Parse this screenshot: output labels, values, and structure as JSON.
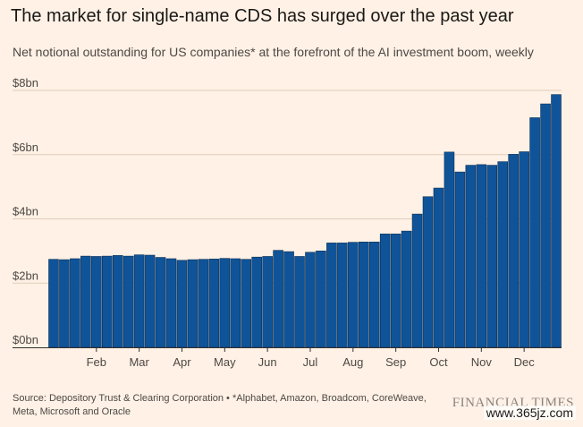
{
  "header": {
    "title": "The market for single-name CDS has surged over the past year",
    "subtitle": "Net notional outstanding for US companies* at the forefront of the AI investment boom, weekly"
  },
  "footer": {
    "source": "Source: Depository Trust & Clearing Corporation • *Alphabet, Amazon, Broadcom, CoreWeave, Meta, Microsoft and Oracle",
    "brand": "FINANCIAL TIMES",
    "watermark": "www.365jz.com"
  },
  "colors": {
    "background": "#fff1e5",
    "bar_fill": "#0f5499",
    "bar_stroke": "#0a2d52",
    "gridline": "#e0ccbc",
    "axis_text": "#4d4845"
  },
  "chart_data": {
    "type": "bar",
    "title": "The market for single-name CDS has surged over the past year",
    "subtitle": "Net notional outstanding for US companies* at the forefront of the AI investment boom, weekly",
    "xlabel": "",
    "ylabel": "",
    "unit": "$bn",
    "ylim": [
      0,
      8
    ],
    "yticks": [
      0,
      2,
      4,
      6,
      8
    ],
    "ytick_labels": [
      "$0bn",
      "$2bn",
      "$4bn",
      "$6bn",
      "$8bn"
    ],
    "grid": true,
    "series": [
      {
        "name": "Net notional outstanding",
        "values": [
          2.74,
          2.73,
          2.76,
          2.84,
          2.83,
          2.84,
          2.86,
          2.84,
          2.88,
          2.87,
          2.8,
          2.76,
          2.71,
          2.73,
          2.74,
          2.75,
          2.77,
          2.76,
          2.74,
          2.81,
          2.83,
          3.02,
          2.98,
          2.83,
          2.96,
          3.0,
          3.25,
          3.25,
          3.27,
          3.28,
          3.28,
          3.53,
          3.53,
          3.62,
          4.15,
          4.69,
          4.96,
          6.08,
          5.46,
          5.67,
          5.69,
          5.67,
          5.78,
          6.01,
          6.09,
          7.15,
          7.58,
          7.87
        ]
      }
    ],
    "x_tick_labels": [
      {
        "label": "Feb",
        "bar_index": 4.5
      },
      {
        "label": "Mar",
        "bar_index": 8.5
      },
      {
        "label": "Apr",
        "bar_index": 12.5
      },
      {
        "label": "May",
        "bar_index": 16.5
      },
      {
        "label": "Jun",
        "bar_index": 20.5
      },
      {
        "label": "Jul",
        "bar_index": 24.5
      },
      {
        "label": "Aug",
        "bar_index": 28.5
      },
      {
        "label": "Sep",
        "bar_index": 32.5
      },
      {
        "label": "Oct",
        "bar_index": 36.5
      },
      {
        "label": "Nov",
        "bar_index": 40.5
      },
      {
        "label": "Dec",
        "bar_index": 44.5
      }
    ]
  }
}
